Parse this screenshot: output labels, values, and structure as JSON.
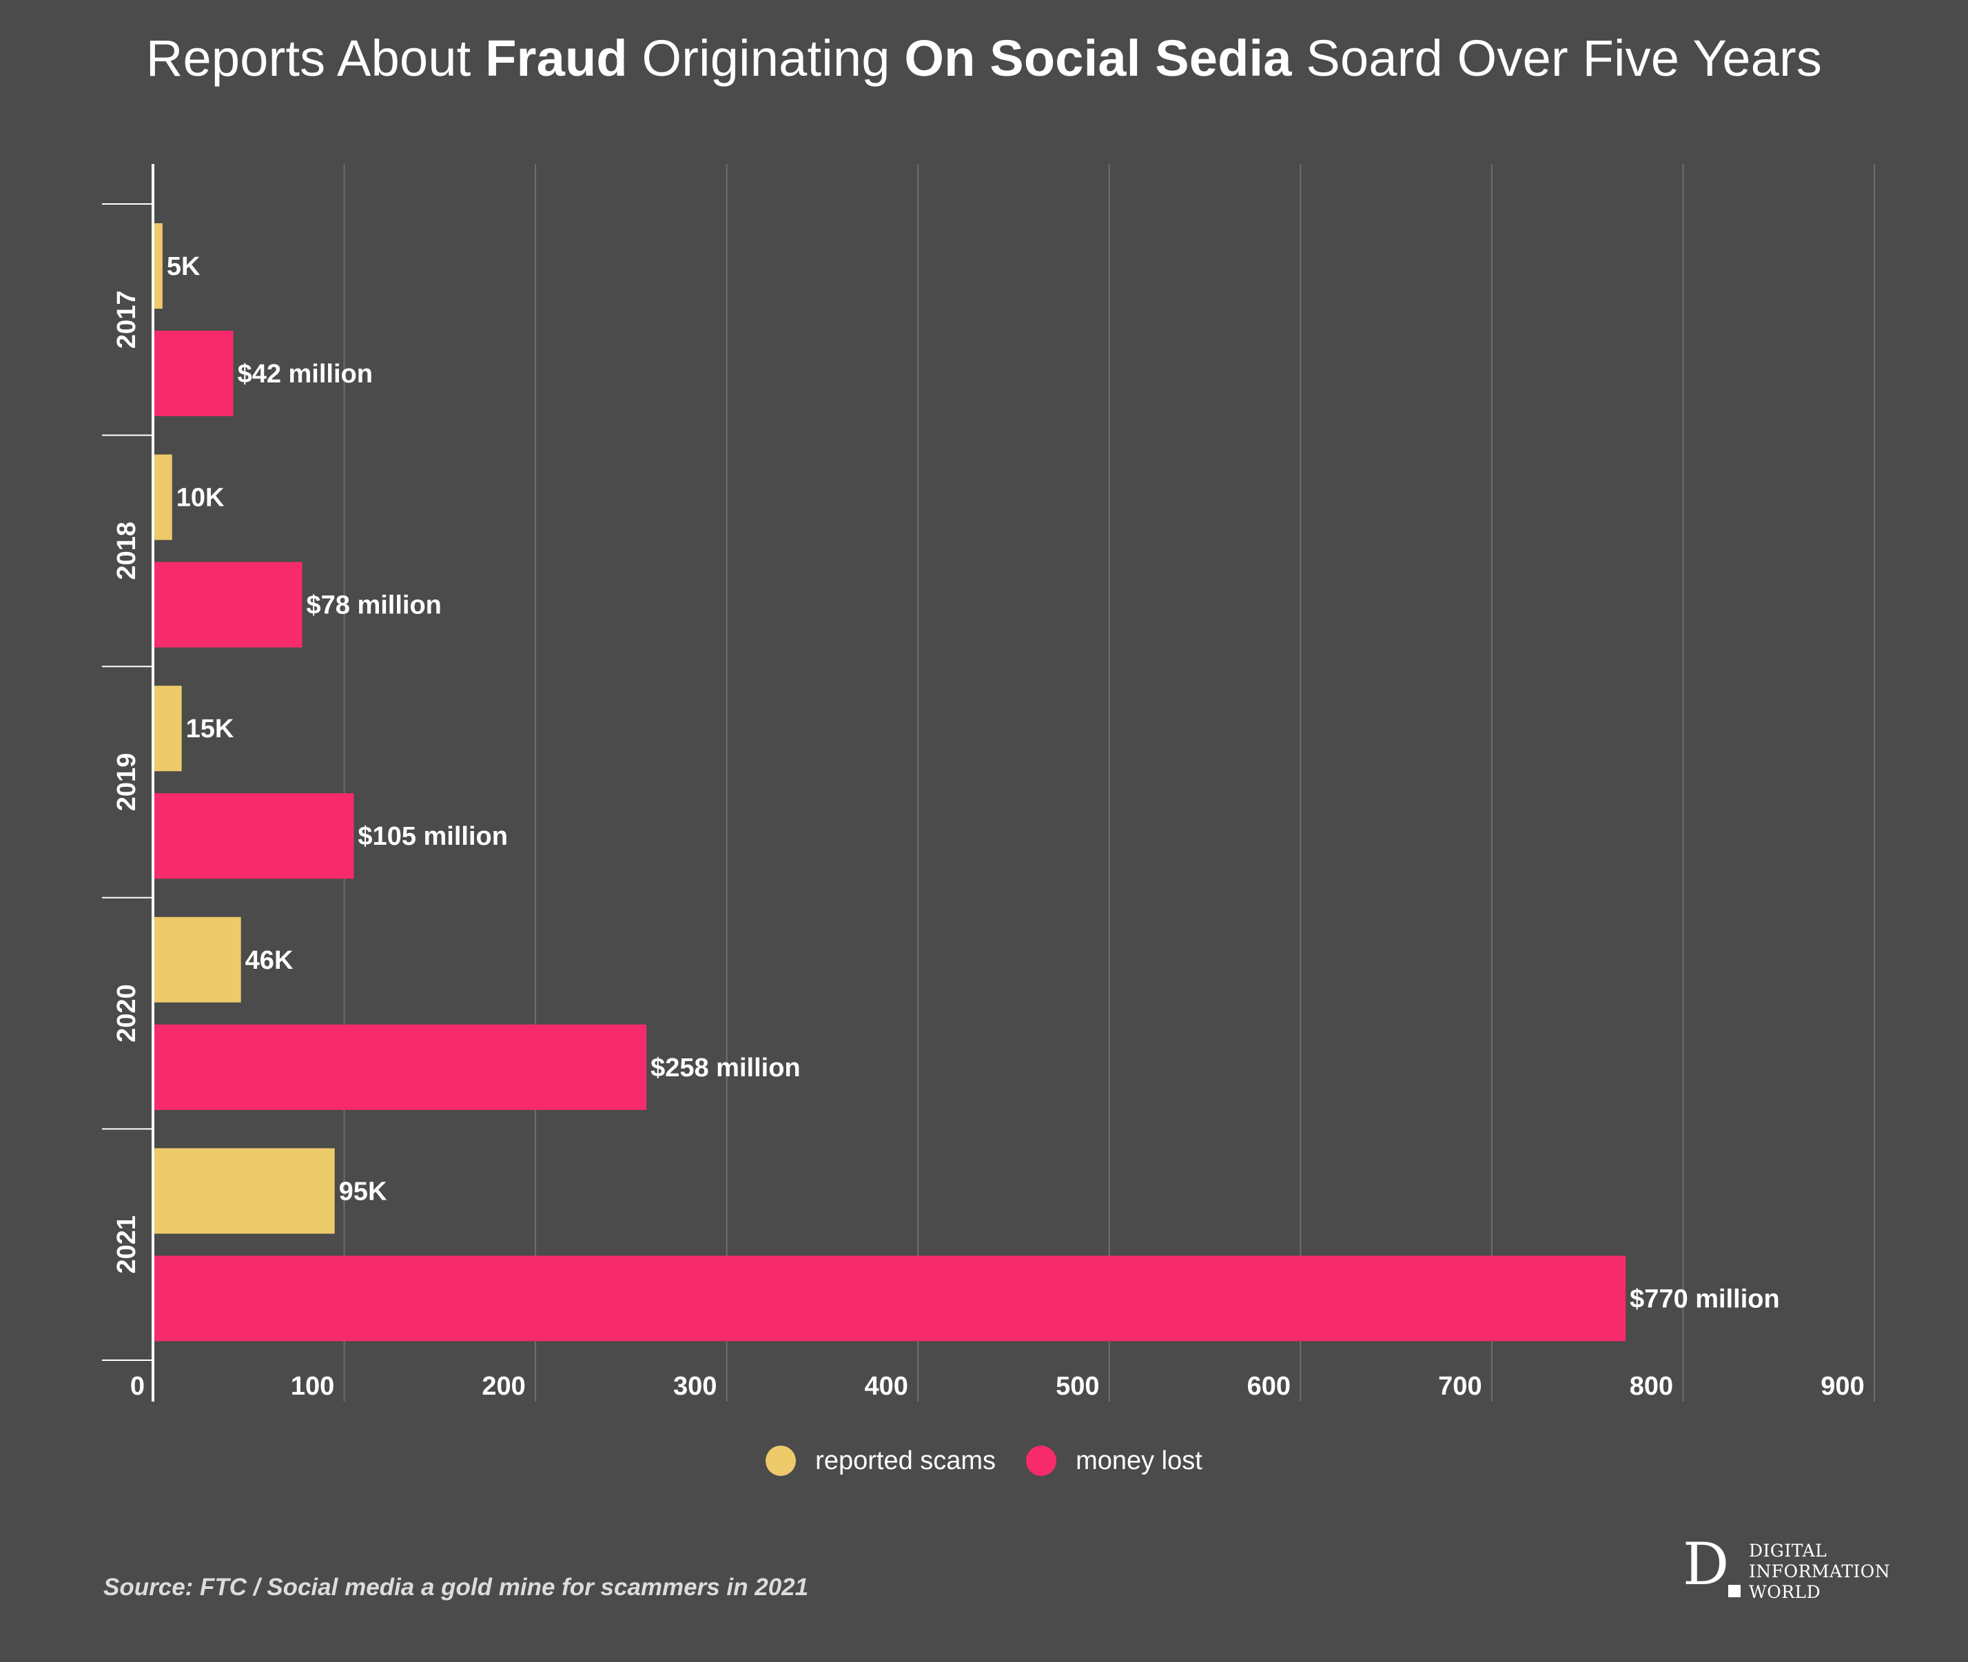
{
  "title": {
    "part1": "Reports About ",
    "bold1": "Fraud",
    "part2": " Originating ",
    "bold2": "On Social Sedia",
    "part3": " Soard Over Five Years"
  },
  "colors": {
    "background": "#4b4b4b",
    "reported_scams": "#edca6a",
    "money_lost": "#f72b6b",
    "grid": "#6e6e6e",
    "axis": "#ffffff"
  },
  "chart_data": {
    "type": "bar",
    "orientation": "horizontal",
    "categories": [
      "2017",
      "2018",
      "2019",
      "2020",
      "2021"
    ],
    "series": [
      {
        "name": "reported scams",
        "values": [
          5,
          10,
          15,
          46,
          95
        ],
        "labels": [
          "5K",
          "10K",
          "15K",
          "46K",
          "95K"
        ]
      },
      {
        "name": "money lost",
        "values": [
          42,
          78,
          105,
          258,
          770
        ],
        "labels": [
          "$42 million",
          "$78 million",
          "$105 million",
          "$258 million",
          "$770 million"
        ]
      }
    ],
    "x_ticks": [
      "0",
      "100",
      "200",
      "300",
      "400",
      "500",
      "600",
      "700",
      "800",
      "900"
    ],
    "xlim": [
      0,
      900
    ],
    "grid": true,
    "legend_placement": "bottom"
  },
  "legend": {
    "items": [
      "reported scams",
      "money lost"
    ]
  },
  "source": "Source:  FTC / Social media a gold mine for scammers in 2021",
  "logo": {
    "letter": "D",
    "lines": [
      "DIGITAL",
      "INFORMATION",
      "WORLD"
    ]
  }
}
